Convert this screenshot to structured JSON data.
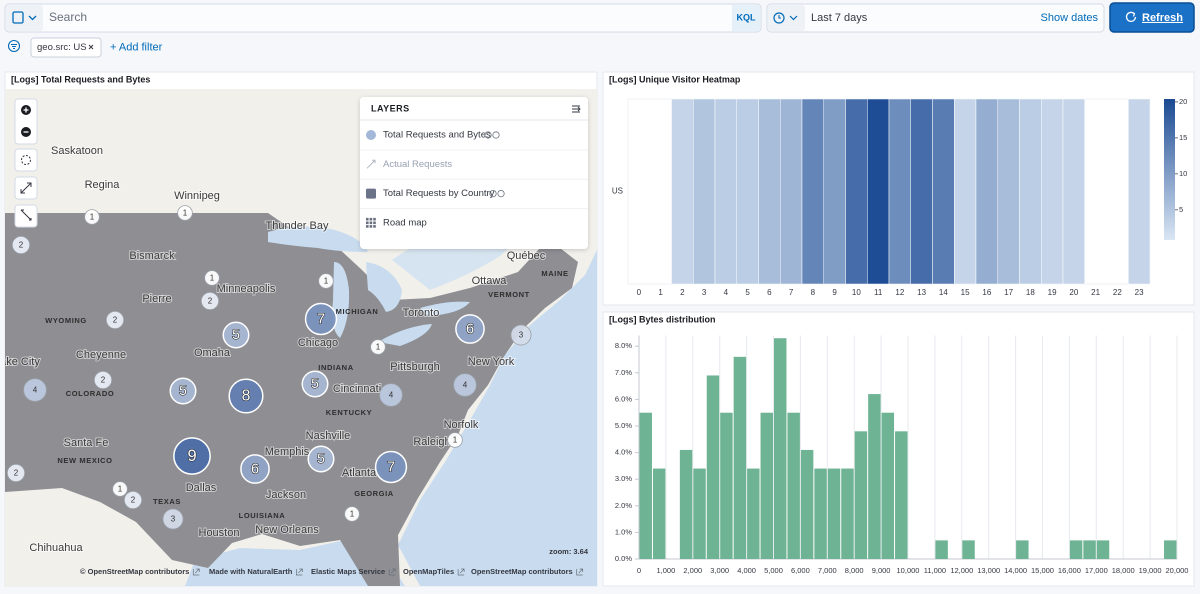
{
  "toolbar": {
    "search_placeholder": "Search",
    "query_language": "KQL",
    "time_range": "Last 7 days",
    "show_dates": "Show dates",
    "refresh": "Refresh"
  },
  "filters": {
    "pills": [
      "geo.src: US"
    ],
    "add_filter": "+ Add filter"
  },
  "map_panel": {
    "title": "[Logs] Total Requests and Bytes",
    "layers_title": "LAYERS",
    "layers": [
      "Total Requests and Bytes",
      "Actual Requests",
      "Total Requests by Country",
      "Road map"
    ],
    "cities": [
      "Saskatoon",
      "Regina",
      "Winnipeg",
      "Thunder Bay",
      "Bismarck",
      "Pierre",
      "Minneapolis",
      "Ottawa",
      "Québec",
      "Toronto",
      "ake City",
      "Cheyenne",
      "Omaha",
      "Chicago",
      "Pittsburgh",
      "New York",
      "Cincinnati",
      "Nashville",
      "Santa Fe",
      "Memphis",
      "Raleigh",
      "Norfolk",
      "Atlanta",
      "Dallas",
      "Jackson",
      "New Orleans",
      "Houston",
      "Chihuahua"
    ],
    "states": [
      "MAINE",
      "VERMONT",
      "WYOMING",
      "MICHIGAN",
      "INDIANA",
      "COLORADO",
      "KENTUCKY",
      "NEW MEXICO",
      "TEXAS",
      "GEORGIA",
      "LOUISIANA"
    ],
    "clusters": [
      1,
      1,
      2,
      1,
      2,
      1,
      2,
      7,
      6,
      3,
      5,
      1,
      2,
      4,
      5,
      8,
      5,
      4,
      4,
      1,
      9,
      6,
      5,
      7,
      1,
      2,
      1,
      3,
      2
    ],
    "zoom": "zoom: 3.64",
    "attributions": [
      "© OpenStreetMap contributors",
      "Made with NaturalEarth",
      "Elastic Maps Service",
      "OpenMapTiles",
      "OpenStreetMap contributors"
    ]
  },
  "chart_data": [
    {
      "type": "heatmap",
      "title": "[Logs] Unique Visitor Heatmap",
      "categories": [
        0,
        1,
        2,
        3,
        4,
        5,
        6,
        7,
        8,
        9,
        10,
        11,
        12,
        13,
        14,
        15,
        16,
        17,
        18,
        19,
        20,
        21,
        22,
        23
      ],
      "series": [
        {
          "name": "US",
          "values": [
            null,
            null,
            3,
            5,
            4,
            4,
            6,
            7,
            13,
            10,
            16,
            20,
            12,
            16,
            14,
            3,
            8,
            6,
            4,
            3,
            3,
            null,
            null,
            3
          ]
        }
      ],
      "colorbar_lim": [
        0.8,
        20.4
      ],
      "colorbar_ticks": [
        5,
        10,
        15,
        20
      ],
      "colors": [
        "#dae6f4",
        "#1b4a93"
      ]
    },
    {
      "type": "histogram",
      "title": "[Logs] Bytes distribution",
      "bins": [
        0,
        500,
        1000,
        1500,
        2000,
        2500,
        3000,
        3500,
        4000,
        4500,
        5000,
        5500,
        6000,
        6500,
        7000,
        7500,
        8000,
        8500,
        9000,
        9500,
        10000,
        10500,
        11000,
        11500,
        12000,
        12500,
        13000,
        13500,
        14000,
        14500,
        15000,
        15500,
        16000,
        16500,
        17000,
        17500,
        18000,
        18500,
        19000,
        19500,
        20000
      ],
      "values": [
        5.5,
        3.4,
        0,
        4.1,
        3.4,
        6.9,
        5.5,
        7.6,
        3.4,
        5.5,
        8.3,
        5.5,
        4.1,
        3.4,
        3.4,
        3.4,
        4.8,
        6.2,
        5.5,
        4.8,
        0,
        0,
        0.7,
        0,
        0.7,
        0,
        0,
        0,
        0.7,
        0,
        0,
        0,
        0.7,
        0.7,
        0.7,
        0,
        0,
        0,
        0,
        0.7
      ],
      "color": "#6eb394",
      "xlim": [
        0,
        20000
      ],
      "xticks": [
        0,
        {
          "value": 1000,
          "label": "1,000"
        },
        {
          "value": 2000,
          "label": "2,000"
        },
        {
          "value": 3000,
          "label": "3,000"
        },
        {
          "value": 4000,
          "label": "4,000"
        },
        {
          "value": 5000,
          "label": "5,000"
        },
        {
          "value": 6000,
          "label": "6,000"
        },
        {
          "value": 7000,
          "label": "7,000"
        },
        {
          "value": 8000,
          "label": "8,000"
        },
        {
          "value": 9000,
          "label": "9,000"
        },
        {
          "value": 10000,
          "label": "10,000"
        },
        {
          "value": 11000,
          "label": "11,000"
        },
        {
          "value": 12000,
          "label": "12,000"
        },
        {
          "value": 13000,
          "label": "13,000"
        },
        {
          "value": 14000,
          "label": "14,000"
        },
        {
          "value": 15000,
          "label": "15,000"
        },
        {
          "value": 16000,
          "label": "16,000"
        },
        {
          "value": 17000,
          "label": "17,000"
        },
        {
          "value": 18000,
          "label": "18,000"
        },
        {
          "value": 19000,
          "label": "19,000"
        },
        {
          "value": 20000,
          "label": "20,000"
        }
      ],
      "ylim": [
        0,
        8.4
      ],
      "yticks": [
        {
          "value": 0,
          "label": "0.0%"
        },
        {
          "value": 1,
          "label": "1.0%"
        },
        {
          "value": 2,
          "label": "2.0%"
        },
        {
          "value": 3,
          "label": "3.0%"
        },
        {
          "value": 4,
          "label": "4.0%"
        },
        {
          "value": 5,
          "label": "5.0%"
        },
        {
          "value": 6,
          "label": "6.0%"
        },
        {
          "value": 7,
          "label": "7.0%"
        },
        {
          "value": 8,
          "label": "8.0%"
        }
      ],
      "grid": true
    }
  ]
}
